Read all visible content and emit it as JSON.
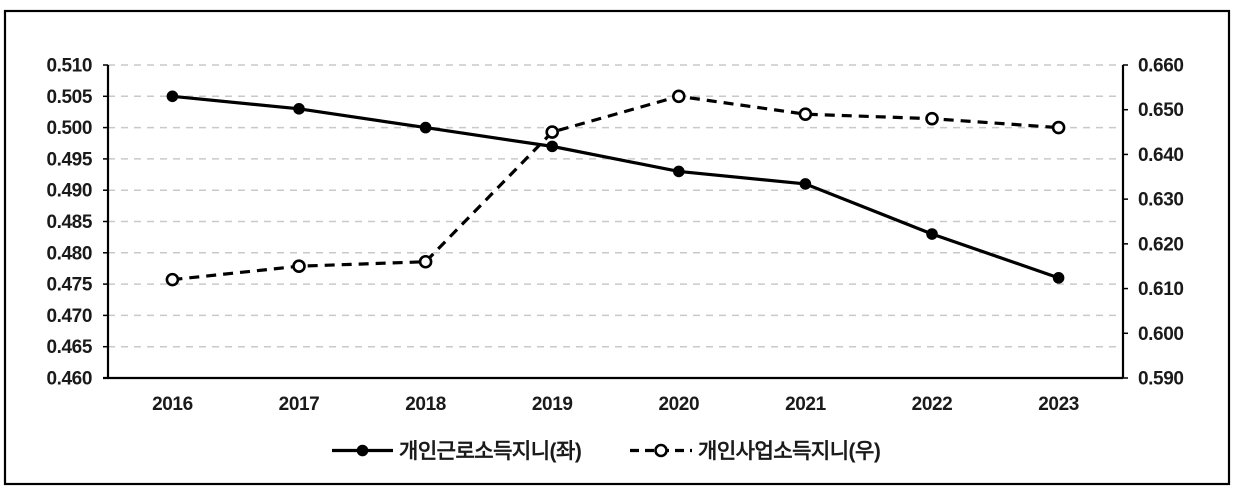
{
  "chart": {
    "background": "#ffffff",
    "border_color": "#000000",
    "line_color": "#000000",
    "grid_color": "#c9c9c9",
    "text_color": "#1a1a1a",
    "marker_fill_open": "#ffffff"
  },
  "chart_data": {
    "type": "line",
    "title": "",
    "categories": [
      "2016",
      "2017",
      "2018",
      "2019",
      "2020",
      "2021",
      "2022",
      "2023"
    ],
    "series": [
      {
        "name": "개인근로소득지니(좌)",
        "axis": "left",
        "line_style": "solid",
        "marker": "filled-circle",
        "color": "#000000",
        "values": [
          0.505,
          0.503,
          0.5,
          0.497,
          0.493,
          0.491,
          0.483,
          0.476
        ]
      },
      {
        "name": "개인사업소득지니(우)",
        "axis": "right",
        "line_style": "dashed",
        "marker": "open-circle",
        "color": "#000000",
        "values": [
          0.612,
          0.615,
          0.616,
          0.645,
          0.653,
          0.649,
          0.648,
          0.646
        ]
      }
    ],
    "left_axis": {
      "min": 0.46,
      "max": 0.51,
      "step": 0.005,
      "tick_labels": [
        "0.510",
        "0.505",
        "0.500",
        "0.495",
        "0.490",
        "0.485",
        "0.480",
        "0.475",
        "0.470",
        "0.465",
        "0.460"
      ]
    },
    "right_axis": {
      "min": 0.59,
      "max": 0.66,
      "step": 0.01,
      "tick_labels": [
        "0.660",
        "0.650",
        "0.640",
        "0.630",
        "0.620",
        "0.610",
        "0.600",
        "0.590"
      ]
    },
    "grid": "horizontal-dashed",
    "legend_position": "bottom"
  }
}
